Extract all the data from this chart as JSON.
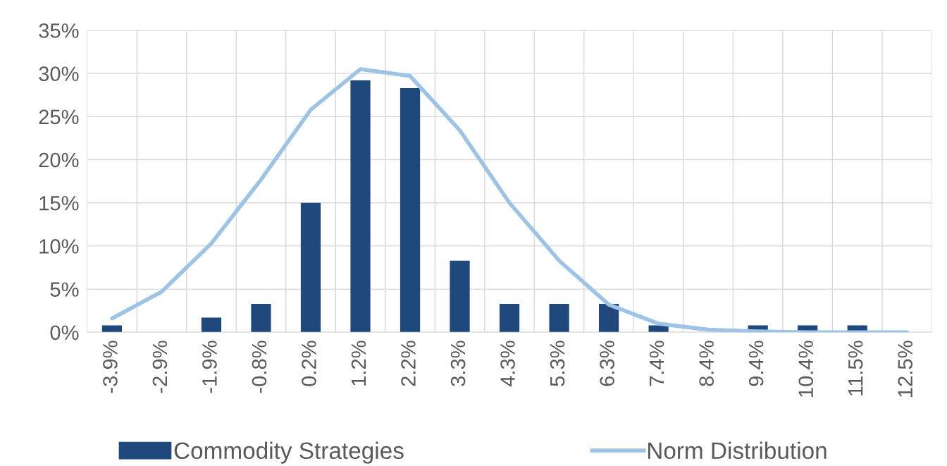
{
  "chart_data": {
    "type": "bar",
    "categories": [
      "-3.9%",
      "-2.9%",
      "-1.9%",
      "-0.8%",
      "0.2%",
      "1.2%",
      "2.2%",
      "3.3%",
      "4.3%",
      "5.3%",
      "6.3%",
      "7.4%",
      "8.4%",
      "9.4%",
      "10.4%",
      "11.5%",
      "12.5%"
    ],
    "series": [
      {
        "name": "Commodity Strategies",
        "color": "#1f497d",
        "values": [
          0.8,
          0,
          1.7,
          3.3,
          15.0,
          29.2,
          28.3,
          8.3,
          3.3,
          3.3,
          3.3,
          0.8,
          0,
          0.8,
          0.8,
          0.8,
          0
        ]
      },
      {
        "name": "Norm Distribution",
        "type": "line",
        "color": "#9dc3e6",
        "values": [
          1.6,
          4.7,
          10.3,
          17.7,
          25.8,
          30.5,
          29.7,
          23.4,
          15.0,
          8.3,
          3.2,
          1.0,
          0.3,
          0.1,
          0.0,
          0.0,
          0.0
        ]
      }
    ],
    "ylim": [
      0,
      35
    ],
    "yticks": [
      {
        "value": 0,
        "label": "0%"
      },
      {
        "value": 5,
        "label": "5%"
      },
      {
        "value": 10,
        "label": "10%"
      },
      {
        "value": 15,
        "label": "15%"
      },
      {
        "value": 20,
        "label": "20%"
      },
      {
        "value": 25,
        "label": "25%"
      },
      {
        "value": 30,
        "label": "30%"
      },
      {
        "value": 35,
        "label": "35%"
      }
    ],
    "grid": true,
    "legend": "bottom"
  }
}
